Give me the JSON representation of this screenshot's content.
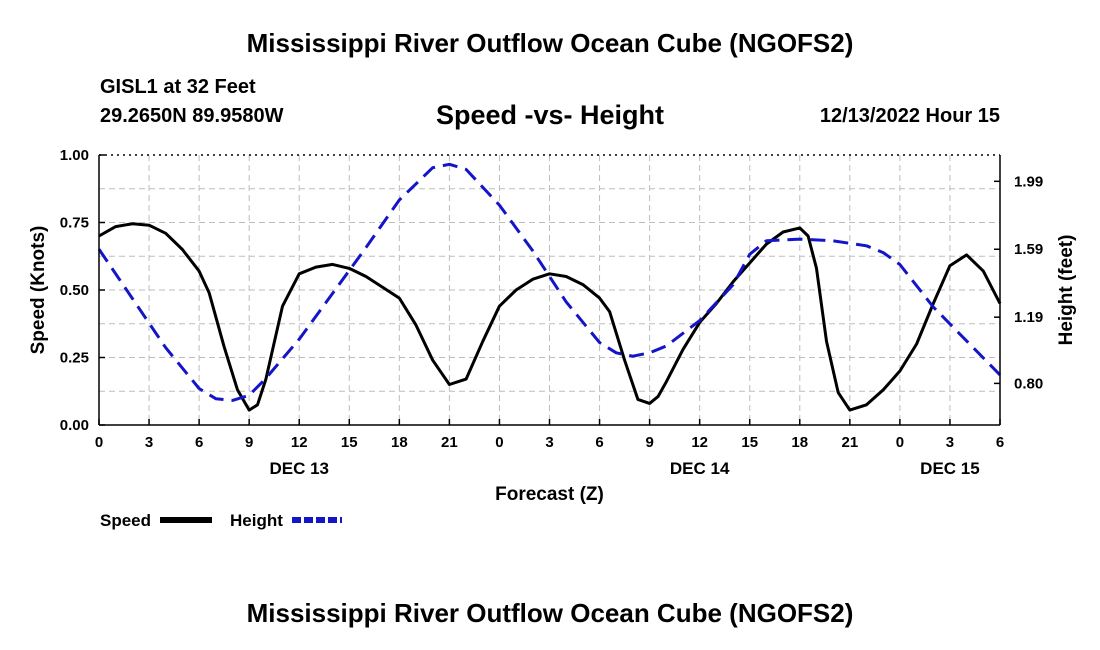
{
  "header": {
    "title": "Mississippi River Outflow Ocean Cube (NGOFS2)",
    "station": "GISL1 at 32 Feet",
    "coords": "29.2650N  89.9580W",
    "subtitle": "Speed -vs- Height",
    "datetime": "12/13/2022 Hour 15"
  },
  "footer": {
    "title": "Mississippi River Outflow Ocean Cube (NGOFS2)"
  },
  "colors": {
    "speed": "#000000",
    "height": "#1515c8",
    "grid": "#bdbdbd"
  },
  "chart_data": {
    "type": "line",
    "title": "Speed -vs- Height",
    "xlabel": "Forecast (Z)",
    "ylabel": "Speed (Knots)",
    "y2label": "Height (feet)",
    "xlim": [
      0,
      54
    ],
    "ylim": [
      0,
      1.0
    ],
    "y2lim": [
      0.555,
      2.145
    ],
    "x_ticks": [
      0,
      3,
      6,
      9,
      12,
      15,
      18,
      21,
      24,
      27,
      30,
      33,
      36,
      39,
      42,
      45,
      48,
      51,
      54
    ],
    "x_tick_labels": [
      "0",
      "3",
      "6",
      "9",
      "12",
      "15",
      "18",
      "21",
      "0",
      "3",
      "6",
      "9",
      "12",
      "15",
      "18",
      "21",
      "0",
      "3",
      "6"
    ],
    "y_ticks": [
      0,
      0.25,
      0.5,
      0.75,
      1.0
    ],
    "y_tick_labels": [
      "0.00",
      "0.25",
      "0.50",
      "0.75",
      "1.00"
    ],
    "y2_ticks": [
      0.8,
      1.19,
      1.59,
      1.99
    ],
    "y2_tick_labels": [
      "0.80",
      "1.19",
      "1.59",
      "1.99"
    ],
    "date_labels": [
      {
        "x": 12,
        "label": "DEC 13"
      },
      {
        "x": 36,
        "label": "DEC 14"
      },
      {
        "x": 51,
        "label": "DEC 15"
      }
    ],
    "legend": [
      {
        "name": "Speed",
        "style": "solid"
      },
      {
        "name": "Height",
        "style": "dashed"
      }
    ],
    "series": [
      {
        "name": "Speed",
        "axis": "left",
        "x": [
          0,
          1,
          2,
          3,
          4,
          5,
          6,
          6.6,
          7.5,
          8.3,
          9,
          9.5,
          10,
          11,
          12,
          13,
          14,
          15,
          16,
          17,
          18,
          19,
          20,
          21,
          22,
          23,
          24,
          25,
          26,
          27,
          28,
          29,
          30,
          30.6,
          31.5,
          32.3,
          33,
          33.5,
          34,
          35,
          36,
          37,
          38,
          39,
          40,
          41,
          42,
          42.5,
          43,
          43.6,
          44.3,
          45,
          46,
          47,
          48,
          49,
          50,
          51,
          52,
          53,
          54
        ],
        "values": [
          0.7,
          0.735,
          0.745,
          0.74,
          0.71,
          0.65,
          0.57,
          0.49,
          0.29,
          0.13,
          0.055,
          0.075,
          0.17,
          0.44,
          0.56,
          0.585,
          0.595,
          0.58,
          0.55,
          0.51,
          0.47,
          0.37,
          0.24,
          0.15,
          0.17,
          0.31,
          0.44,
          0.5,
          0.54,
          0.56,
          0.55,
          0.52,
          0.47,
          0.42,
          0.24,
          0.095,
          0.08,
          0.105,
          0.16,
          0.28,
          0.38,
          0.45,
          0.53,
          0.6,
          0.67,
          0.715,
          0.73,
          0.7,
          0.58,
          0.31,
          0.12,
          0.055,
          0.075,
          0.13,
          0.2,
          0.3,
          0.45,
          0.59,
          0.63,
          0.57,
          0.45
        ]
      },
      {
        "name": "Height",
        "axis": "right",
        "x": [
          0,
          2,
          4,
          6,
          7,
          8,
          9,
          10,
          12,
          14,
          16,
          18,
          20,
          21,
          22,
          24,
          26,
          28,
          30,
          31,
          32,
          33,
          34,
          36,
          38,
          39,
          40,
          42,
          44,
          46,
          47,
          48,
          50,
          52,
          54
        ],
        "values": [
          1.59,
          1.3,
          1.01,
          0.77,
          0.71,
          0.7,
          0.73,
          0.83,
          1.06,
          1.33,
          1.6,
          1.88,
          2.07,
          2.09,
          2.06,
          1.85,
          1.58,
          1.28,
          1.04,
          0.98,
          0.96,
          0.98,
          1.02,
          1.17,
          1.38,
          1.56,
          1.64,
          1.65,
          1.64,
          1.61,
          1.57,
          1.5,
          1.25,
          1.05,
          0.85
        ]
      }
    ]
  }
}
